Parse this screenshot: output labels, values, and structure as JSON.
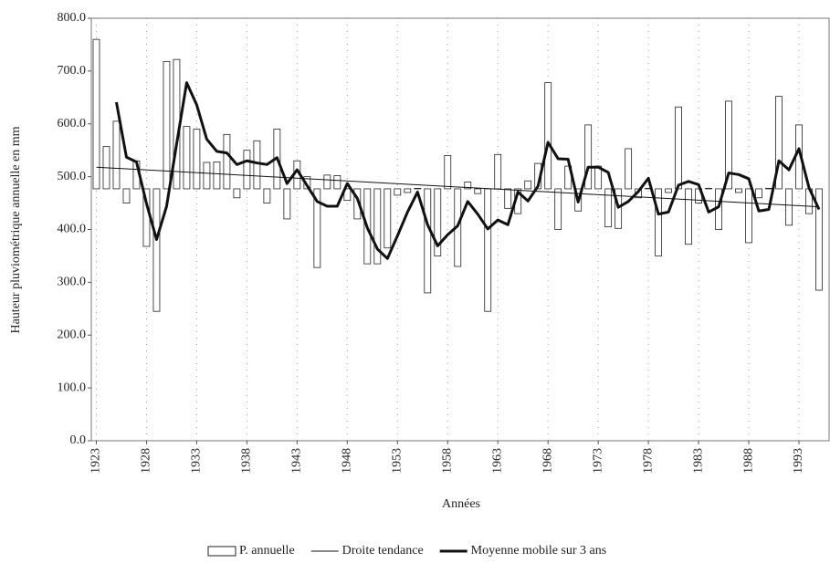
{
  "chart_data": {
    "type": "bar_line",
    "x": [
      1923,
      1924,
      1925,
      1926,
      1927,
      1928,
      1929,
      1930,
      1931,
      1932,
      1933,
      1934,
      1935,
      1936,
      1937,
      1938,
      1939,
      1940,
      1941,
      1942,
      1943,
      1944,
      1945,
      1946,
      1947,
      1948,
      1949,
      1950,
      1951,
      1952,
      1953,
      1954,
      1955,
      1956,
      1957,
      1958,
      1959,
      1960,
      1961,
      1962,
      1963,
      1964,
      1965,
      1966,
      1967,
      1968,
      1969,
      1970,
      1971,
      1972,
      1973,
      1974,
      1975,
      1976,
      1977,
      1978,
      1979,
      1980,
      1981,
      1982,
      1983,
      1984,
      1985,
      1986,
      1987,
      1988,
      1989,
      1990,
      1991,
      1992,
      1993,
      1994,
      1995
    ],
    "baseline": 477,
    "series": [
      {
        "name": "P. annuelle",
        "kind": "bar",
        "color": "#ffffff",
        "values": [
          760,
          557,
          605,
          450,
          530,
          368,
          245,
          718,
          722,
          595,
          590,
          527,
          528,
          580,
          460,
          550,
          568,
          450,
          590,
          420,
          530,
          500,
          328,
          503,
          502,
          455,
          420,
          335,
          335,
          365,
          465,
          470,
          478,
          280,
          350,
          540,
          330,
          490,
          468,
          245,
          542,
          440,
          430,
          492,
          525,
          678,
          400,
          520,
          435,
          598,
          520,
          405,
          402,
          553,
          460,
          478,
          350,
          470,
          632,
          372,
          450,
          478,
          400,
          643,
          470,
          375,
          460,
          478,
          652,
          408,
          598,
          430,
          285
        ]
      },
      {
        "name": "Droite tendance",
        "kind": "line",
        "color": "#111111",
        "x": [
          1923,
          1995
        ],
        "values": [
          518,
          443
        ]
      },
      {
        "name": "Moyenne mobile sur 3 ans",
        "kind": "line",
        "color": "#111111",
        "values": [
          null,
          null,
          641,
          537,
          528,
          449,
          381,
          444,
          562,
          678,
          636,
          571,
          548,
          545,
          523,
          530,
          526,
          523,
          536,
          487,
          513,
          483,
          453,
          444,
          444,
          487,
          459,
          403,
          363,
          345,
          388,
          433,
          471,
          409,
          369,
          390,
          407,
          453,
          429,
          401,
          418,
          409,
          471,
          454,
          482,
          565,
          534,
          533,
          452,
          518,
          518,
          508,
          442,
          453,
          472,
          497,
          429,
          433,
          484,
          491,
          485,
          433,
          443,
          507,
          504,
          496,
          435,
          438,
          530,
          513,
          553,
          479,
          438
        ]
      }
    ],
    "xlabel": "Années",
    "ylabel": "Hauteur pluviométrique annuelle en mm",
    "xlim": [
      1922.5,
      1996
    ],
    "xticks": [
      1923,
      1928,
      1933,
      1938,
      1943,
      1948,
      1953,
      1958,
      1963,
      1968,
      1973,
      1978,
      1983,
      1988,
      1993
    ],
    "ylim": [
      0,
      800
    ],
    "yticks": [
      {
        "value": 0,
        "label": "0.0"
      },
      {
        "value": 100,
        "label": "100.0"
      },
      {
        "value": 200,
        "label": "200.0"
      },
      {
        "value": 300,
        "label": "300.0"
      },
      {
        "value": 400,
        "label": "400.0"
      },
      {
        "value": 500,
        "label": "500.0"
      },
      {
        "value": 600,
        "label": "600.0"
      },
      {
        "value": 700,
        "label": "700.0"
      },
      {
        "value": 800,
        "label": "800.0"
      }
    ],
    "grid": true
  }
}
